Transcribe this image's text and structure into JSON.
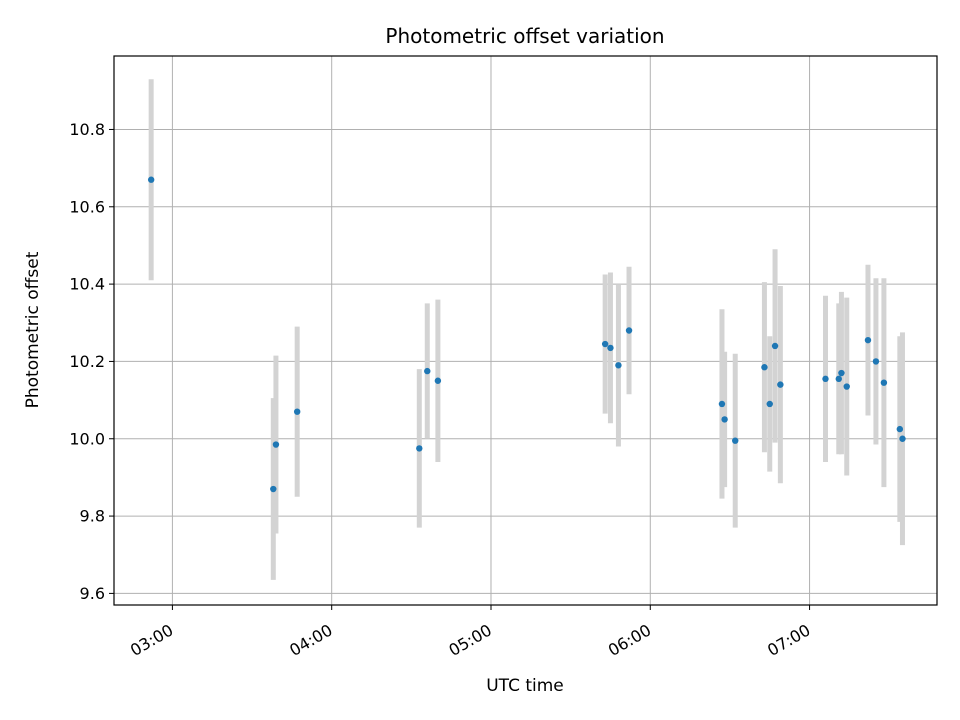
{
  "chart_data": {
    "type": "scatter",
    "title": "Photometric offset variation",
    "xlabel": "UTC time",
    "ylabel": "Photometric offset",
    "x_ticks": [
      "03:00",
      "04:00",
      "05:00",
      "06:00",
      "07:00"
    ],
    "y_ticks": [
      "9.6",
      "9.8",
      "10.0",
      "10.2",
      "10.4",
      "10.6",
      "10.8"
    ],
    "xlim": [
      "02:38",
      "07:48"
    ],
    "ylim": [
      9.57,
      10.99
    ],
    "grid": true,
    "marker_color": "#1f77b4",
    "errorbar_color": "#d3d3d3",
    "points": [
      {
        "t": "02:52",
        "y": 10.67,
        "err": 0.26
      },
      {
        "t": "03:38",
        "y": 9.87,
        "err": 0.235
      },
      {
        "t": "03:39",
        "y": 9.985,
        "err": 0.23
      },
      {
        "t": "03:47",
        "y": 10.07,
        "err": 0.22
      },
      {
        "t": "04:33",
        "y": 9.975,
        "err": 0.205
      },
      {
        "t": "04:36",
        "y": 10.175,
        "err": 0.175
      },
      {
        "t": "04:40",
        "y": 10.15,
        "err": 0.21
      },
      {
        "t": "05:43",
        "y": 10.245,
        "err": 0.18
      },
      {
        "t": "05:45",
        "y": 10.235,
        "err": 0.195
      },
      {
        "t": "05:48",
        "y": 10.19,
        "err": 0.21
      },
      {
        "t": "05:52",
        "y": 10.28,
        "err": 0.165
      },
      {
        "t": "06:27",
        "y": 10.09,
        "err": 0.245
      },
      {
        "t": "06:28",
        "y": 10.05,
        "err": 0.175
      },
      {
        "t": "06:32",
        "y": 9.995,
        "err": 0.225
      },
      {
        "t": "06:43",
        "y": 10.185,
        "err": 0.22
      },
      {
        "t": "06:45",
        "y": 10.09,
        "err": 0.175
      },
      {
        "t": "06:47",
        "y": 10.24,
        "err": 0.25
      },
      {
        "t": "06:49",
        "y": 10.14,
        "err": 0.255
      },
      {
        "t": "07:06",
        "y": 10.155,
        "err": 0.215
      },
      {
        "t": "07:11",
        "y": 10.155,
        "err": 0.195
      },
      {
        "t": "07:12",
        "y": 10.17,
        "err": 0.21
      },
      {
        "t": "07:14",
        "y": 10.135,
        "err": 0.23
      },
      {
        "t": "07:22",
        "y": 10.255,
        "err": 0.195
      },
      {
        "t": "07:25",
        "y": 10.2,
        "err": 0.215
      },
      {
        "t": "07:28",
        "y": 10.145,
        "err": 0.27
      },
      {
        "t": "07:34",
        "y": 10.025,
        "err": 0.24
      },
      {
        "t": "07:35",
        "y": 10.0,
        "err": 0.275
      }
    ]
  }
}
